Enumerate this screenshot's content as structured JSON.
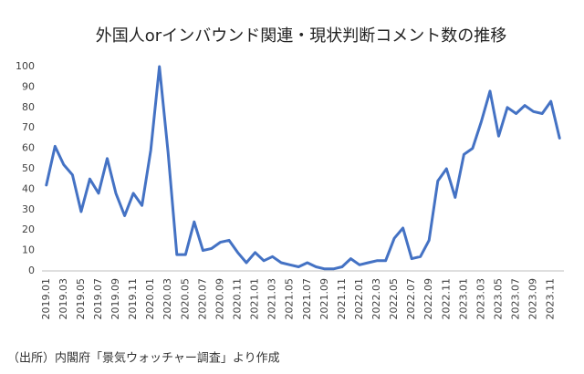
{
  "chart_data": {
    "type": "line",
    "title": "外国人orインバウンド関連・現状判断コメント数の推移",
    "note": "（出所）内閣府「景気ウォッチャー調査」より作成",
    "categories": [
      "2019.01",
      null,
      "2019.03",
      null,
      "2019.05",
      null,
      "2019.07",
      null,
      "2019.09",
      null,
      "2019.11",
      null,
      "2020.01",
      null,
      "2020.03",
      null,
      "2020.05",
      null,
      "2020.07",
      null,
      "2020.09",
      null,
      "2020.11",
      null,
      "2021.01",
      null,
      "2021.03",
      null,
      "2021.05",
      null,
      "2021.07",
      null,
      "2021.09",
      null,
      "2021.11",
      null,
      "2022.01",
      null,
      "2022.03",
      null,
      "2022.05",
      null,
      "2022.07",
      null,
      "2022.09",
      null,
      "2022.11",
      null,
      "2023.01",
      null,
      "2023.03",
      null,
      "2023.05",
      null,
      "2023.07",
      null,
      "2023.09",
      null,
      "2023.11",
      null
    ],
    "values": [
      42,
      61,
      52,
      47,
      29,
      45,
      38,
      55,
      38,
      27,
      38,
      32,
      59,
      100,
      58,
      8,
      8,
      24,
      10,
      11,
      14,
      15,
      9,
      4,
      9,
      5,
      7,
      4,
      3,
      2,
      4,
      2,
      1,
      1,
      2,
      6,
      3,
      4,
      5,
      5,
      16,
      21,
      6,
      7,
      15,
      44,
      50,
      36,
      57,
      60,
      73,
      88,
      66,
      80,
      77,
      81,
      78,
      77,
      83,
      65
    ],
    "color": "#4472c4",
    "ylim": [
      0,
      100
    ],
    "yticks": [
      0,
      10,
      20,
      30,
      40,
      50,
      60,
      70,
      80,
      90,
      100
    ],
    "grid": false
  }
}
